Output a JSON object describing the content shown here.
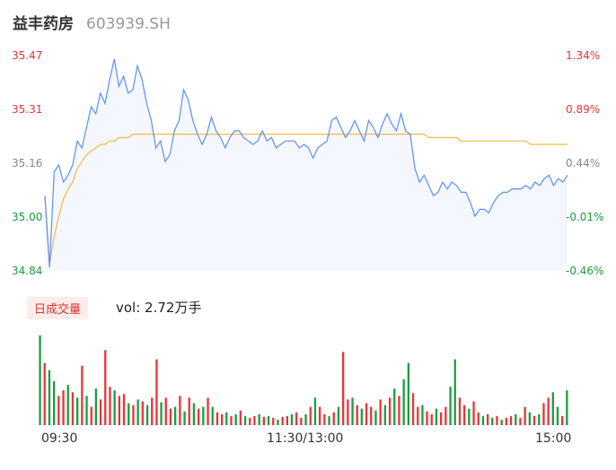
{
  "header": {
    "name": "益丰药房",
    "code": "603939.SH"
  },
  "volume": {
    "tag": "日成交量",
    "text": "vol: 2.72万手"
  },
  "colors": {
    "price": "#5b8ff9",
    "avg": "#f5b942",
    "up": "#e8343a",
    "down": "#1a9e3f",
    "neutral": "#888888"
  },
  "chart_data": [
    {
      "type": "line",
      "title": "",
      "y_tick_labels": [
        "35.47",
        "35.31",
        "35.16",
        "35.00",
        "34.84"
      ],
      "y_pct_labels": [
        "1.34%",
        "0.89%",
        "0.44%",
        "-0.01%",
        "-0.46%"
      ],
      "x_tick_labels": [
        "09:30",
        "11:30/13:00",
        "15:00"
      ],
      "ylim": [
        34.84,
        35.47
      ],
      "series": [
        {
          "name": "",
          "role": "price",
          "values": [
            35.06,
            34.85,
            35.13,
            35.15,
            35.1,
            35.12,
            35.15,
            35.22,
            35.2,
            35.26,
            35.32,
            35.3,
            35.36,
            35.33,
            35.4,
            35.46,
            35.38,
            35.41,
            35.36,
            35.37,
            35.44,
            35.4,
            35.33,
            35.28,
            35.2,
            35.22,
            35.16,
            35.18,
            35.25,
            35.28,
            35.37,
            35.34,
            35.28,
            35.24,
            35.21,
            35.24,
            35.29,
            35.25,
            35.23,
            35.2,
            35.23,
            35.25,
            35.25,
            35.23,
            35.22,
            35.21,
            35.22,
            35.25,
            35.22,
            35.23,
            35.2,
            35.21,
            35.22,
            35.22,
            35.22,
            35.2,
            35.21,
            35.2,
            35.17,
            35.2,
            35.21,
            35.22,
            35.28,
            35.29,
            35.26,
            35.23,
            35.25,
            35.28,
            35.25,
            35.22,
            35.28,
            35.26,
            35.23,
            35.27,
            35.3,
            35.27,
            35.25,
            35.3,
            35.25,
            35.24,
            35.14,
            35.1,
            35.12,
            35.09,
            35.06,
            35.07,
            35.1,
            35.08,
            35.1,
            35.09,
            35.07,
            35.07,
            35.04,
            35.0,
            35.02,
            35.02,
            35.01,
            35.04,
            35.06,
            35.07,
            35.07,
            35.08,
            35.08,
            35.08,
            35.09,
            35.08,
            35.1,
            35.09,
            35.11,
            35.12,
            35.09,
            35.11,
            35.1,
            35.12
          ]
        },
        {
          "name": "",
          "role": "average",
          "values": [
            35.06,
            34.86,
            34.94,
            35.0,
            35.05,
            35.08,
            35.1,
            35.14,
            35.16,
            35.18,
            35.19,
            35.2,
            35.21,
            35.21,
            35.22,
            35.22,
            35.23,
            35.23,
            35.23,
            35.24,
            35.24,
            35.24,
            35.24,
            35.24,
            35.24,
            35.24,
            35.24,
            35.24,
            35.24,
            35.24,
            35.24,
            35.24,
            35.24,
            35.24,
            35.24,
            35.24,
            35.24,
            35.24,
            35.24,
            35.24,
            35.24,
            35.24,
            35.24,
            35.24,
            35.24,
            35.24,
            35.24,
            35.24,
            35.24,
            35.24,
            35.24,
            35.24,
            35.24,
            35.24,
            35.24,
            35.24,
            35.24,
            35.24,
            35.24,
            35.24,
            35.24,
            35.24,
            35.24,
            35.24,
            35.24,
            35.24,
            35.24,
            35.24,
            35.24,
            35.24,
            35.24,
            35.24,
            35.24,
            35.24,
            35.24,
            35.24,
            35.24,
            35.24,
            35.24,
            35.24,
            35.24,
            35.24,
            35.24,
            35.23,
            35.23,
            35.23,
            35.23,
            35.23,
            35.23,
            35.23,
            35.22,
            35.22,
            35.22,
            35.22,
            35.22,
            35.22,
            35.22,
            35.22,
            35.22,
            35.22,
            35.22,
            35.22,
            35.22,
            35.22,
            35.22,
            35.21,
            35.21,
            35.21,
            35.21,
            35.21,
            35.21,
            35.21,
            35.21,
            35.21
          ]
        }
      ]
    },
    {
      "type": "bar",
      "title": "",
      "volumes": [
        0.98,
        0.68,
        0.6,
        0.48,
        0.32,
        0.38,
        0.44,
        0.36,
        0.3,
        0.65,
        0.32,
        0.2,
        0.4,
        0.28,
        0.82,
        0.42,
        0.38,
        0.32,
        0.34,
        0.24,
        0.22,
        0.28,
        0.26,
        0.22,
        0.3,
        0.72,
        0.25,
        0.3,
        0.18,
        0.2,
        0.32,
        0.15,
        0.3,
        0.24,
        0.18,
        0.2,
        0.3,
        0.2,
        0.14,
        0.12,
        0.14,
        0.1,
        0.12,
        0.16,
        0.1,
        0.08,
        0.1,
        0.12,
        0.09,
        0.1,
        0.08,
        0.06,
        0.09,
        0.1,
        0.12,
        0.14,
        0.08,
        0.12,
        0.2,
        0.3,
        0.2,
        0.12,
        0.1,
        0.14,
        0.2,
        0.8,
        0.28,
        0.3,
        0.22,
        0.18,
        0.24,
        0.2,
        0.16,
        0.28,
        0.22,
        0.3,
        0.4,
        0.32,
        0.5,
        0.68,
        0.35,
        0.2,
        0.22,
        0.15,
        0.12,
        0.18,
        0.14,
        0.2,
        0.42,
        0.72,
        0.3,
        0.22,
        0.18,
        0.26,
        0.14,
        0.1,
        0.12,
        0.08,
        0.1,
        0.06,
        0.08,
        0.1,
        0.12,
        0.08,
        0.2,
        0.14,
        0.1,
        0.12,
        0.24,
        0.3,
        0.36,
        0.2,
        0.1,
        0.38
      ],
      "up": [
        false,
        true,
        false,
        false,
        true,
        true,
        false,
        true,
        false,
        true,
        false,
        true,
        false,
        true,
        true,
        true,
        false,
        true,
        true,
        false,
        true,
        false,
        true,
        false,
        true,
        true,
        false,
        true,
        true,
        false,
        true,
        false,
        true,
        false,
        true,
        false,
        true,
        false,
        true,
        true,
        false,
        true,
        false,
        true,
        false,
        true,
        true,
        false,
        true,
        false,
        true,
        false,
        true,
        true,
        false,
        true,
        true,
        false,
        true,
        false,
        true,
        true,
        false,
        true,
        false,
        true,
        true,
        false,
        true,
        false,
        true,
        true,
        false,
        true,
        false,
        true,
        false,
        true,
        false,
        false,
        true,
        true,
        false,
        true,
        true,
        false,
        true,
        true,
        false,
        false,
        true,
        true,
        false,
        true,
        true,
        false,
        true,
        false,
        true,
        false,
        true,
        true,
        false,
        true,
        true,
        false,
        true,
        false,
        true,
        true,
        false,
        false,
        true,
        false
      ]
    }
  ]
}
